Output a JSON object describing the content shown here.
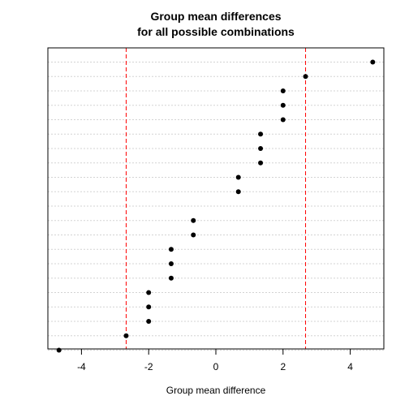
{
  "chart_data": {
    "type": "scatter",
    "title_lines": [
      "Group mean differences",
      "for all possible combinations"
    ],
    "xlabel": "Group mean difference",
    "ylabel": "",
    "xlim": [
      -5,
      5
    ],
    "x_ticks": [
      "-4",
      "-2",
      "0",
      "2",
      "4"
    ],
    "x_tick_values": [
      -4,
      -2,
      0,
      2,
      4
    ],
    "reference_lines": [
      -2.67,
      2.67
    ],
    "reference_line_color": "#ff0000",
    "grid_color": "#d3d3d3",
    "point_color": "#000000",
    "values_top_to_bottom": [
      4.67,
      2.67,
      2.0,
      2.0,
      2.0,
      1.33,
      1.33,
      1.33,
      0.67,
      0.67,
      null,
      -0.67,
      -0.67,
      -1.33,
      -1.33,
      -1.33,
      -2.0,
      -2.0,
      -2.0,
      -2.67,
      -4.67
    ]
  }
}
